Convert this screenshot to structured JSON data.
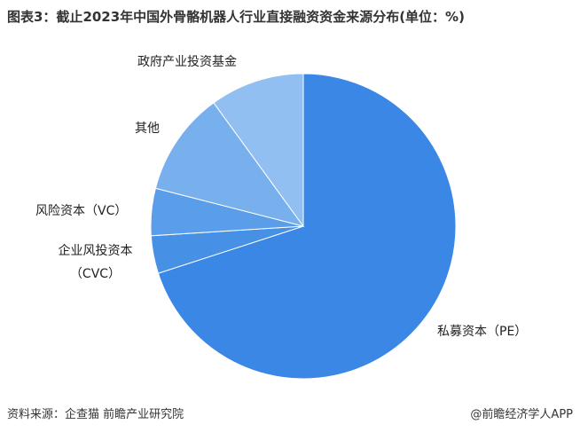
{
  "chart_data": {
    "type": "pie",
    "title": "图表3：截止2023年中国外骨骼机器人行业直接融资资金来源分布(单位：%)",
    "categories": [
      "私募资本（PE）",
      "企业风投资本（CVC）",
      "风险资本（VC）",
      "其他",
      "政府产业投资基金"
    ],
    "values": [
      70,
      4,
      5,
      11,
      10
    ],
    "colors": [
      "#3a87e6",
      "#4690e6",
      "#5a9de9",
      "#78afed",
      "#92bff2"
    ],
    "source": "资料来源：企查猫 前瞻产业研究院",
    "brand": "@前瞻经济学人APP"
  }
}
